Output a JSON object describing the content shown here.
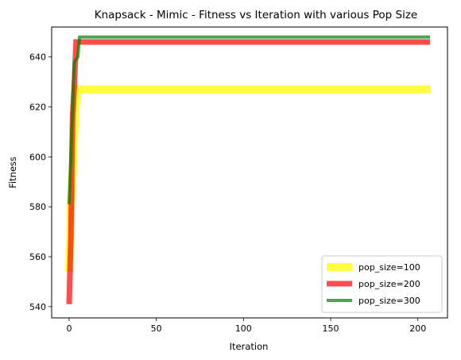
{
  "chart_data": {
    "type": "line",
    "title": "Knapsack - Mimic - Fitness vs Iteration with various Pop Size",
    "xlabel": "Iteration",
    "ylabel": "Fitness",
    "xlim": [
      -10,
      217
    ],
    "ylim": [
      535.5,
      652
    ],
    "xticks": [
      0,
      50,
      100,
      150,
      200
    ],
    "yticks": [
      540,
      560,
      580,
      600,
      620,
      640
    ],
    "legend_position": "lower right",
    "grid": false,
    "series": [
      {
        "name": "pop_size=100",
        "color": "#ffff00",
        "alpha": 0.75,
        "linewidth": 10,
        "x": [
          0,
          1,
          2,
          3,
          4,
          5,
          207
        ],
        "y": [
          554,
          580,
          593,
          610,
          622,
          627,
          627
        ]
      },
      {
        "name": "pop_size=200",
        "color": "#ff0000",
        "alpha": 0.7,
        "linewidth": 7,
        "x": [
          0,
          1,
          2,
          3,
          4,
          5,
          207
        ],
        "y": [
          541,
          567,
          616,
          629,
          646,
          646,
          646
        ]
      },
      {
        "name": "pop_size=300",
        "color": "#008000",
        "alpha": 0.7,
        "linewidth": 4,
        "x": [
          0,
          1,
          2,
          3,
          4,
          5,
          6,
          207
        ],
        "y": [
          581,
          600,
          621,
          638,
          639,
          640,
          648,
          648
        ]
      }
    ]
  }
}
